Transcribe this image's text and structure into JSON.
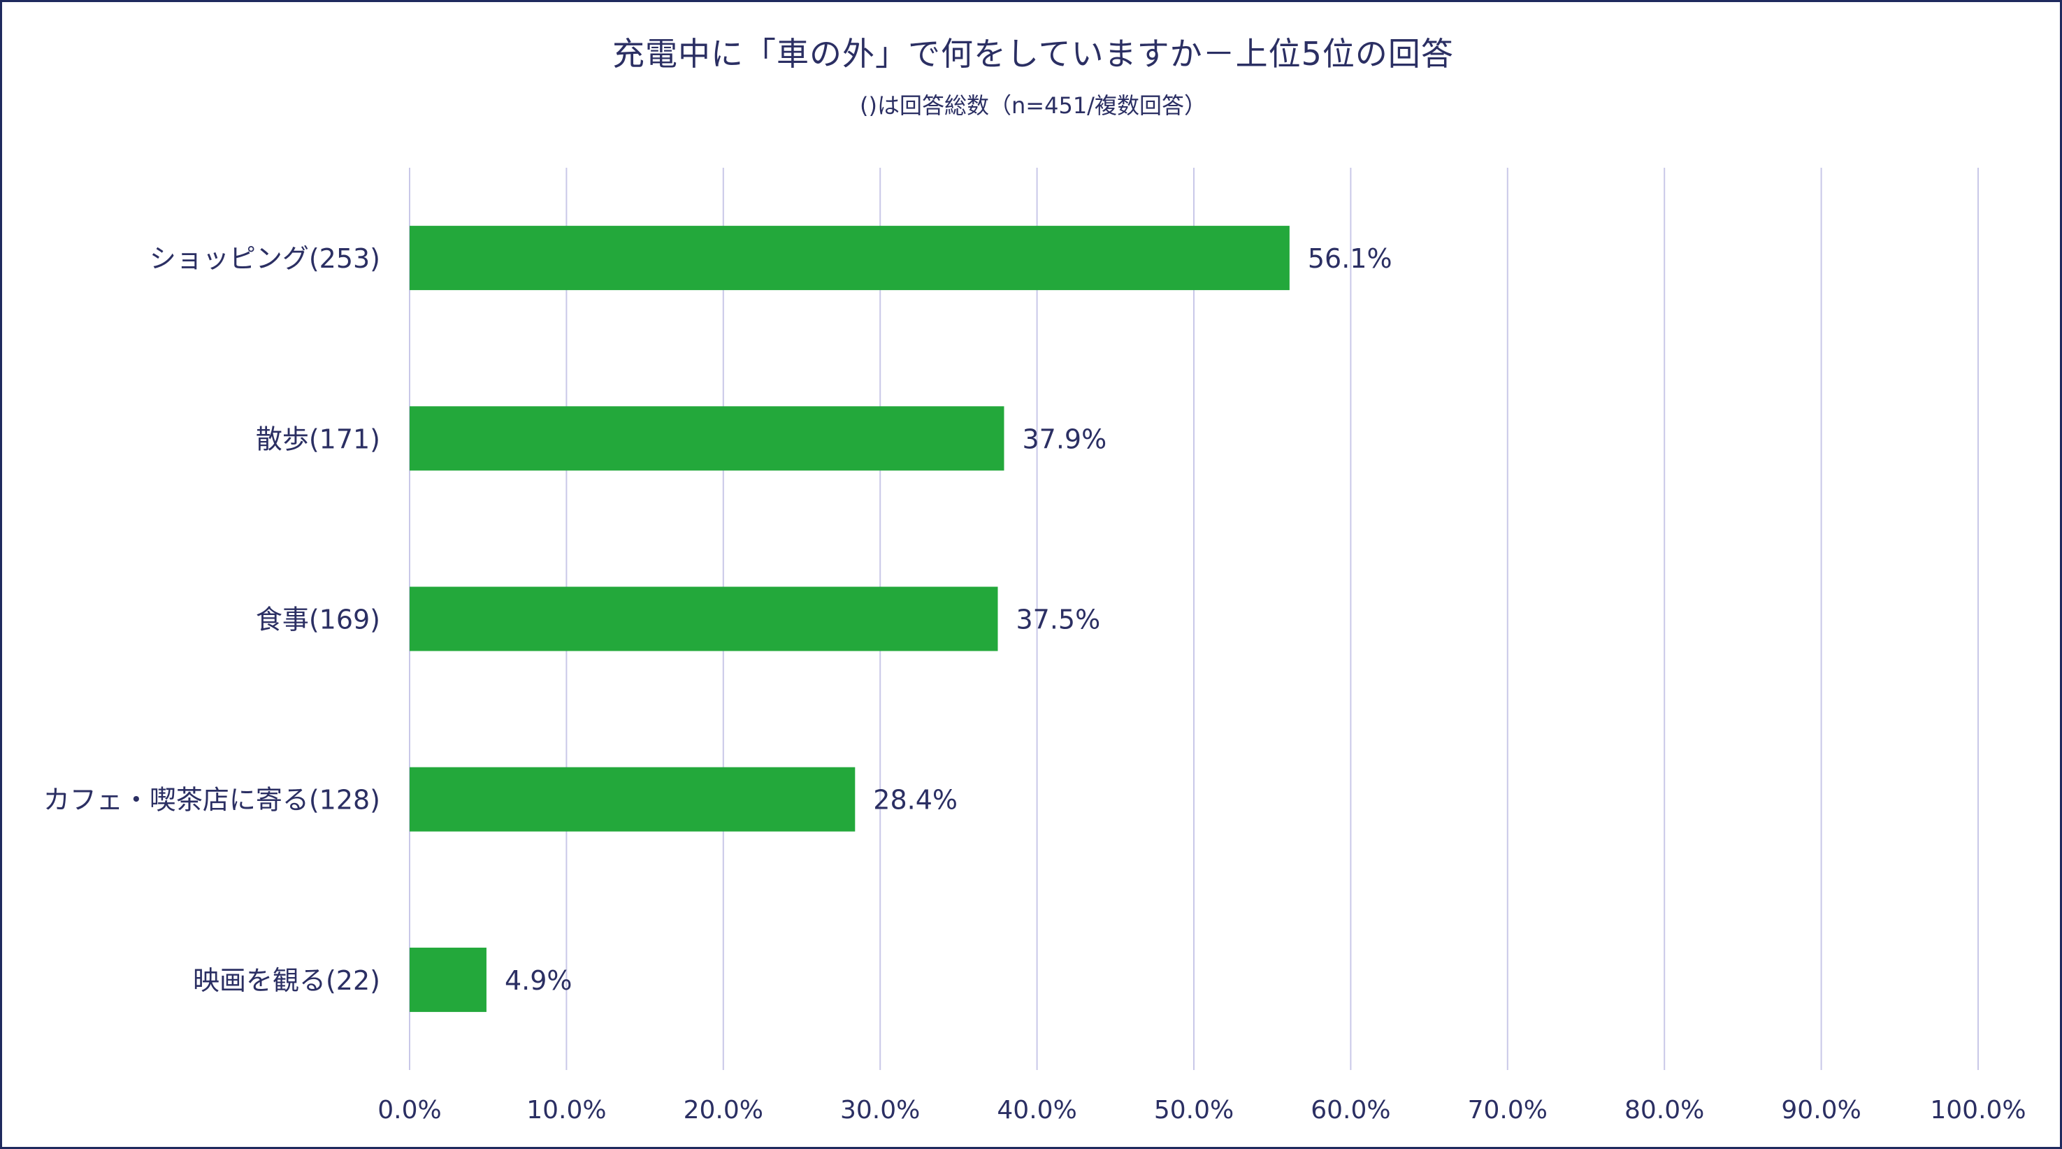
{
  "title": "充電中に「車の外」で何をしていますか－上位5位の回答",
  "subtitle": "()は回答総数（n=451/複数回答）",
  "colors": {
    "bar": "#23a83b",
    "grid": "#c9c8e8",
    "text": "#2b2f63",
    "frame": "#1f2a5e"
  },
  "chart_data": {
    "type": "bar",
    "orientation": "horizontal",
    "categories": [
      "ショッピング(253)",
      "散歩(171)",
      "食事(169)",
      "カフェ・喫茶店に寄る(128)",
      "映画を観る(22)"
    ],
    "values": [
      56.1,
      37.9,
      37.5,
      28.4,
      4.9
    ],
    "value_labels": [
      "56.1%",
      "37.9%",
      "37.5%",
      "28.4%",
      "4.9%"
    ],
    "x_ticks": [
      "0.0%",
      "10.0%",
      "20.0%",
      "30.0%",
      "40.0%",
      "50.0%",
      "60.0%",
      "70.0%",
      "80.0%",
      "90.0%",
      "100.0%"
    ],
    "xlim": [
      0,
      100
    ],
    "grid": true,
    "legend": "none"
  }
}
